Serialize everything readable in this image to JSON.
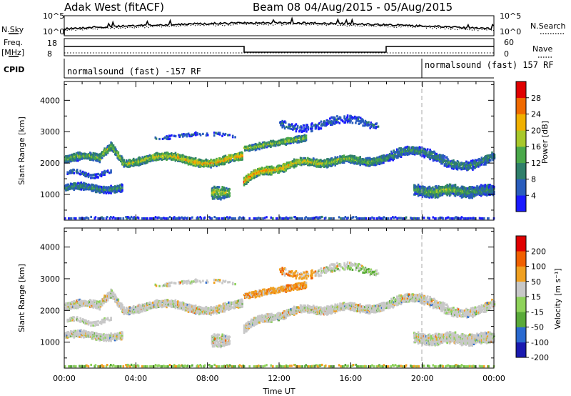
{
  "header": {
    "station": "Adak West (fitACF)",
    "beam_date": "Beam 08  04/Aug/2015 - 05/Aug/2015"
  },
  "strip": {
    "left_nsky": "N.Sky",
    "left_freq_top": "Freq.",
    "left_freq_bottom": "[MHz]",
    "left_cpid": "CPID",
    "left_ticks_sky": [
      "10^5",
      "10^0"
    ],
    "left_ticks_freq": [
      "18",
      "8"
    ],
    "right_ticks_sky": [
      "10^5",
      "10^0"
    ],
    "right_ticks_nave": [
      "60",
      "0"
    ],
    "right_nsearch": "N.Search",
    "right_nave": "Nave",
    "cpid_left": "normalsound (fast) -157 RF",
    "cpid_right": "normalsound (fast) 157 RF"
  },
  "chart_data": [
    {
      "type": "heatmap",
      "title": "",
      "ylabel": "Slant Range [km]",
      "xlabel": "",
      "x_ticks": [
        "00:00",
        "04:00",
        "08:00",
        "12:00",
        "16:00",
        "20:00",
        "00:00"
      ],
      "y_ticks": [
        1000,
        2000,
        3000,
        4000
      ],
      "ylim": [
        180,
        4600
      ],
      "xlim_hours": [
        0,
        24
      ],
      "colorbar_label": "Power [dB]",
      "colorbar_ticks": [
        4,
        8,
        12,
        16,
        20,
        24,
        28
      ],
      "colorbar_colors": [
        "#1a1aff",
        "#2a5dbd",
        "#2f7f6a",
        "#4aa84a",
        "#a8c82a",
        "#f0b000",
        "#f06a00",
        "#e00000"
      ]
    },
    {
      "type": "heatmap",
      "title": "",
      "ylabel": "Slant Range [km]",
      "xlabel": "Time UT",
      "x_ticks": [
        "00:00",
        "04:00",
        "08:00",
        "12:00",
        "16:00",
        "20:00",
        "00:00"
      ],
      "y_ticks": [
        1000,
        2000,
        3000,
        4000
      ],
      "ylim": [
        180,
        4600
      ],
      "xlim_hours": [
        0,
        24
      ],
      "colorbar_label": "Velocity [m s⁻¹]",
      "colorbar_ticks": [
        200,
        100,
        50,
        15,
        -15,
        -50,
        -100,
        -200
      ],
      "colorbar_colors": [
        "#1a1ab0",
        "#2a6ad0",
        "#5aaa3a",
        "#8ed25a",
        "#c8c8c8",
        "#f0a020",
        "#f06000",
        "#e00000"
      ]
    }
  ]
}
